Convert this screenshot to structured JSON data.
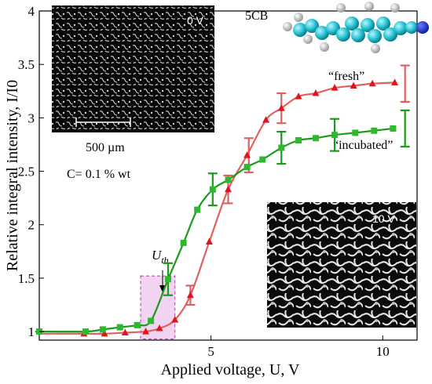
{
  "chart_data": {
    "type": "scatter",
    "xlabel": "Applied voltage, U, V",
    "ylabel": "Relative integral intensity, I/I0",
    "xlim": [
      0,
      11
    ],
    "ylim": [
      0.92,
      4
    ],
    "x_ticks": [
      5,
      10
    ],
    "x_tick_labels": [
      "5",
      "10"
    ],
    "y_ticks": [
      1,
      1.5,
      2,
      2.5,
      3,
      3.5,
      4
    ],
    "y_tick_labels": [
      "1",
      "1.5",
      "2",
      "2.5",
      "3",
      "3.5",
      "4"
    ],
    "series": [
      {
        "name": "“fresh”",
        "marker": "triangle",
        "color": "#e0151f",
        "line_color": "#e06060",
        "x": [
          1.3,
          1.9,
          2.5,
          3.1,
          3.5,
          3.95,
          4.4,
          4.95,
          5.5,
          6.05,
          6.6,
          7.05,
          7.55,
          8.05,
          8.6,
          9.15,
          9.7,
          10.35
        ],
        "y": [
          0.98,
          0.98,
          0.99,
          1.0,
          1.03,
          1.11,
          1.34,
          1.84,
          2.33,
          2.65,
          2.98,
          3.09,
          3.2,
          3.23,
          3.28,
          3.3,
          3.32,
          3.33
        ],
        "error_bars": [
          {
            "x": 4.4,
            "y": 1.34,
            "err": 0.09
          },
          {
            "x": 5.5,
            "y": 2.33,
            "err": 0.13
          },
          {
            "x": 6.1,
            "y": 2.65,
            "err": 0.16
          },
          {
            "x": 7.05,
            "y": 3.09,
            "err": 0.14
          },
          {
            "x": 10.65,
            "y": 3.32,
            "err": 0.17
          }
        ]
      },
      {
        "name": "“incubated”",
        "marker": "square",
        "color": "#2eb82e",
        "line_color": "#1a9a1a",
        "x": [
          0,
          1.35,
          1.85,
          2.35,
          2.85,
          3.25,
          3.75,
          4.2,
          4.6,
          5.05,
          5.5,
          6.05,
          6.5,
          7.05,
          7.55,
          8.05,
          8.6,
          9.2,
          9.75,
          10.3
        ],
        "y": [
          1.0,
          1.0,
          1.02,
          1.04,
          1.06,
          1.1,
          1.49,
          1.83,
          2.14,
          2.33,
          2.42,
          2.54,
          2.61,
          2.72,
          2.79,
          2.81,
          2.84,
          2.86,
          2.88,
          2.9
        ],
        "error_bars": [
          {
            "x": 3.75,
            "y": 1.49,
            "err": 0.15
          },
          {
            "x": 5.05,
            "y": 2.33,
            "err": 0.15
          },
          {
            "x": 7.05,
            "y": 2.72,
            "err": 0.15
          },
          {
            "x": 8.6,
            "y": 2.84,
            "err": 0.15
          },
          {
            "x": 10.65,
            "y": 2.9,
            "err": 0.17
          }
        ]
      }
    ],
    "threshold": {
      "label_main": "U",
      "label_sub": "th",
      "x_from": 2.95,
      "x_to": 3.95,
      "y_from": 0.93,
      "y_to": 1.52,
      "color": "#f2d4f2",
      "border_color": "#9a4a9a"
    },
    "annotations": {
      "concentration": "C= 0.1 % wt",
      "molecule": "5CB",
      "scale_bar": "500 µm",
      "inset_top_label": "0 V",
      "inset_bottom_label": "10 V"
    },
    "grid": false,
    "legend": "none"
  }
}
